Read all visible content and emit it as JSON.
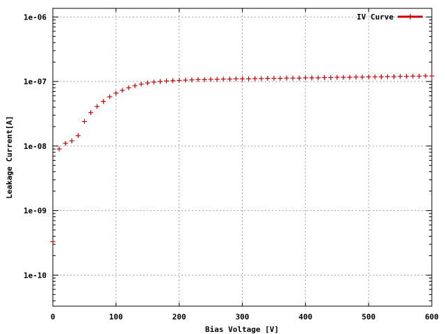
{
  "chart_data": {
    "type": "scatter",
    "xlabel": "Bias Voltage [V]",
    "ylabel": "Leakage Current[A]",
    "xlim": [
      0,
      600
    ],
    "ylim": [
      3.3e-11,
      1.36e-06
    ],
    "y_scale": "log",
    "grid": true,
    "legend_position": "top-right",
    "x_ticks": [
      0,
      100,
      200,
      300,
      400,
      500,
      600
    ],
    "x_tick_labels": [
      "0",
      "100",
      "200",
      "300",
      "400",
      "500",
      "600"
    ],
    "y_ticks": [
      1e-10,
      1e-09,
      1e-08,
      1e-07,
      1e-06
    ],
    "y_tick_labels": [
      "1e-10",
      "1e-09",
      "1e-08",
      "1e-07",
      "1e-06"
    ],
    "series": [
      {
        "name": "IV Curve",
        "color": "#cc0000",
        "marker": "plus",
        "x": [
          0,
          10,
          20,
          30,
          40,
          50,
          60,
          70,
          80,
          90,
          100,
          110,
          120,
          130,
          140,
          150,
          160,
          170,
          180,
          190,
          200,
          210,
          220,
          230,
          240,
          250,
          260,
          270,
          280,
          290,
          300,
          310,
          320,
          330,
          340,
          350,
          360,
          370,
          380,
          390,
          400,
          410,
          420,
          430,
          440,
          450,
          460,
          470,
          480,
          490,
          500,
          510,
          520,
          530,
          540,
          550,
          560,
          570,
          580,
          590,
          600
        ],
        "y": [
          3.3e-10,
          9e-09,
          1.1e-08,
          1.2e-08,
          1.45e-08,
          2.4e-08,
          3.3e-08,
          4.1e-08,
          4.9e-08,
          5.8e-08,
          6.6e-08,
          7.3e-08,
          8e-08,
          8.6e-08,
          9.1e-08,
          9.5e-08,
          9.8e-08,
          1e-07,
          1.02e-07,
          1.03e-07,
          1.04e-07,
          1.05e-07,
          1.06e-07,
          1.07e-07,
          1.07e-07,
          1.08e-07,
          1.08e-07,
          1.09e-07,
          1.09e-07,
          1.1e-07,
          1.1e-07,
          1.1e-07,
          1.11e-07,
          1.11e-07,
          1.12e-07,
          1.12e-07,
          1.12e-07,
          1.13e-07,
          1.13e-07,
          1.13e-07,
          1.14e-07,
          1.14e-07,
          1.14e-07,
          1.15e-07,
          1.15e-07,
          1.16e-07,
          1.16e-07,
          1.16e-07,
          1.17e-07,
          1.17e-07,
          1.18e-07,
          1.18e-07,
          1.18e-07,
          1.19e-07,
          1.19e-07,
          1.2e-07,
          1.2e-07,
          1.21e-07,
          1.21e-07,
          1.22e-07,
          1.22e-07
        ]
      }
    ]
  }
}
